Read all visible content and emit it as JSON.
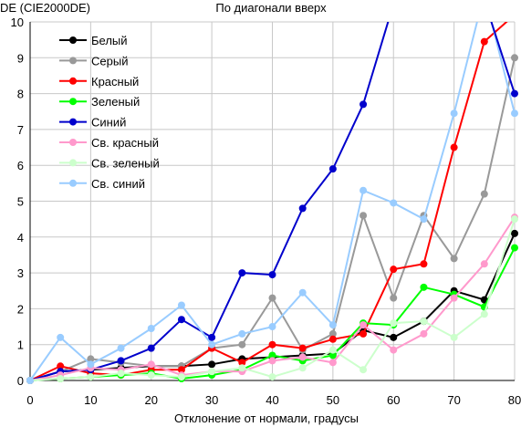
{
  "chart_data": {
    "type": "line",
    "title": "По диагонали вверх",
    "ylabel": "DE (CIE2000DE)",
    "xlabel": "Отклонение от нормали, градусы",
    "xlim": [
      0,
      80
    ],
    "ylim": [
      0,
      10
    ],
    "x_ticks": [
      0,
      10,
      20,
      30,
      40,
      50,
      60,
      70,
      80
    ],
    "y_ticks": [
      0,
      1,
      2,
      3,
      4,
      5,
      6,
      7,
      8,
      9,
      10
    ],
    "grid": true,
    "legend_position": "top-left",
    "x": [
      0,
      5,
      10,
      15,
      20,
      25,
      30,
      35,
      40,
      45,
      50,
      55,
      60,
      65,
      70,
      75,
      80
    ],
    "series": [
      {
        "name": "Белый",
        "color": "#000000",
        "values": [
          0,
          0.25,
          0.3,
          0.35,
          0.4,
          0.4,
          0.45,
          0.6,
          0.65,
          0.7,
          0.75,
          1.4,
          1.2,
          1.65,
          2.5,
          2.25,
          4.1
        ]
      },
      {
        "name": "Серый",
        "color": "#999999",
        "values": [
          0,
          0.25,
          0.6,
          0.5,
          0.4,
          0.4,
          0.9,
          1.0,
          2.3,
          0.85,
          1.3,
          4.6,
          2.3,
          4.6,
          3.4,
          5.2,
          9.0
        ]
      },
      {
        "name": "Красный",
        "color": "#ff0000",
        "values": [
          0,
          0.4,
          0.2,
          0.15,
          0.3,
          0.3,
          0.9,
          0.5,
          1.0,
          0.9,
          1.15,
          1.3,
          3.1,
          3.25,
          6.5,
          9.45,
          10.2
        ]
      },
      {
        "name": "Зеленый",
        "color": "#00ff00",
        "values": [
          0,
          0.05,
          0.1,
          0.15,
          0.2,
          0.05,
          0.15,
          0.3,
          0.7,
          0.55,
          0.7,
          1.6,
          1.55,
          2.6,
          2.4,
          2.05,
          3.7
        ]
      },
      {
        "name": "Синий",
        "color": "#0000cc",
        "values": [
          0,
          0.25,
          0.3,
          0.55,
          0.9,
          1.7,
          1.2,
          3.0,
          2.95,
          4.8,
          5.9,
          7.7,
          10.5,
          null,
          null,
          null,
          null
        ]
      },
      {
        "name": "Св. красный",
        "color": "#ff99cc",
        "values": [
          0,
          0.15,
          0.35,
          0.3,
          0.45,
          0.15,
          0.25,
          0.25,
          0.55,
          0.65,
          0.5,
          1.55,
          0.85,
          1.3,
          2.3,
          3.25,
          4.55
        ]
      },
      {
        "name": "Св. зеленый",
        "color": "#ccffcc",
        "values": [
          0,
          0.05,
          0.1,
          0.2,
          0.15,
          0.1,
          0.25,
          0.35,
          0.1,
          0.35,
          0.85,
          0.3,
          1.6,
          1.65,
          1.2,
          1.85,
          4.5
        ]
      },
      {
        "name": "Св. синий",
        "color": "#99ccff",
        "values": [
          0,
          1.2,
          0.45,
          0.9,
          1.45,
          2.1,
          1.0,
          1.3,
          1.5,
          2.45,
          1.55,
          5.3,
          4.95,
          4.5,
          7.45,
          10.8,
          7.45
        ]
      },
      {
        "name": "",
        "color": "#0000cc",
        "values": [
          null,
          null,
          null,
          null,
          null,
          null,
          null,
          null,
          null,
          null,
          null,
          null,
          null,
          null,
          null,
          10.6,
          8.0
        ]
      }
    ]
  }
}
